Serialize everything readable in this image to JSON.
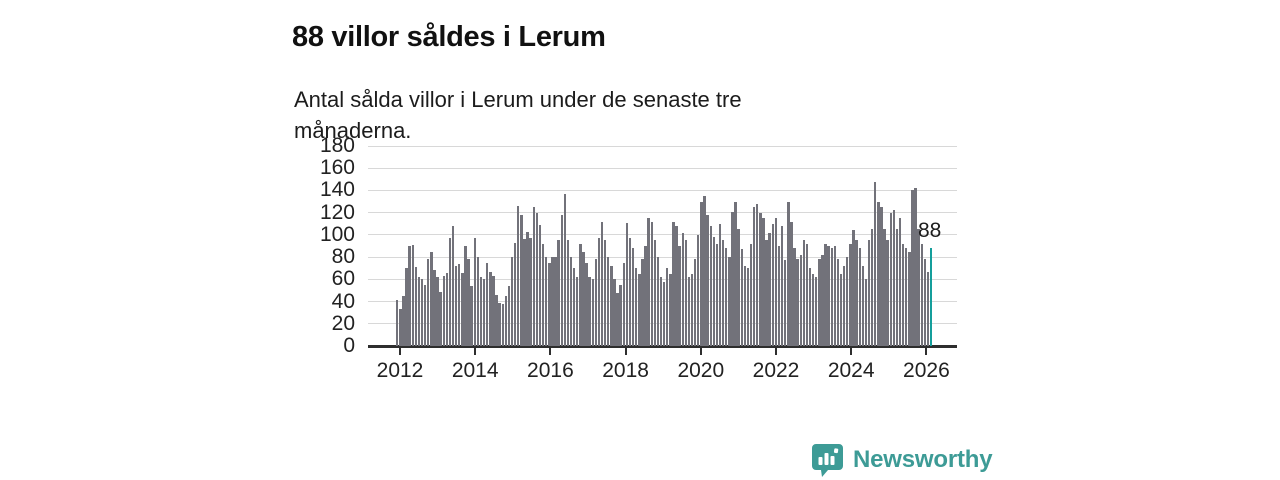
{
  "header": {
    "title": "88 villor såldes i Lerum",
    "subtitle": "Antal sålda villor i Lerum under de senaste tre månaderna."
  },
  "chart_data": {
    "type": "bar",
    "title": "88 villor såldes i Lerum",
    "subtitle": "Antal sålda villor i Lerum under de senaste tre månaderna.",
    "ylabel": "",
    "xlabel": "",
    "ylim": [
      0,
      180
    ],
    "y_ticks": [
      0,
      20,
      40,
      60,
      80,
      100,
      120,
      140,
      160,
      180
    ],
    "x_tick_labels": [
      "2012",
      "2014",
      "2016",
      "2018",
      "2020",
      "2022",
      "2024",
      "2026"
    ],
    "grid": true,
    "legend": "none",
    "bar_color": "#72727a",
    "highlight_color": "#149e9b",
    "values": [
      41,
      33,
      45,
      70,
      90,
      91,
      71,
      62,
      60,
      55,
      78,
      85,
      68,
      62,
      49,
      63,
      66,
      97,
      108,
      72,
      74,
      66,
      90,
      78,
      54,
      97,
      80,
      62,
      60,
      75,
      67,
      63,
      46,
      39,
      38,
      45,
      54,
      80,
      93,
      126,
      118,
      96,
      103,
      97,
      125,
      120,
      109,
      92,
      80,
      75,
      80,
      80,
      95,
      118,
      137,
      95,
      80,
      70,
      62,
      92,
      85,
      75,
      62,
      60,
      78,
      97,
      112,
      95,
      80,
      72,
      60,
      48,
      55,
      75,
      111,
      97,
      88,
      70,
      65,
      78,
      90,
      115,
      112,
      95,
      80,
      62,
      58,
      70,
      65,
      112,
      108,
      90,
      102,
      95,
      62,
      65,
      78,
      100,
      130,
      135,
      118,
      108,
      98,
      92,
      110,
      95,
      88,
      80,
      121,
      130,
      105,
      87,
      72,
      70,
      92,
      125,
      128,
      120,
      115,
      95,
      102,
      110,
      115,
      90,
      108,
      77,
      130,
      112,
      88,
      78,
      82,
      95,
      92,
      70,
      65,
      62,
      78,
      82,
      92,
      90,
      88,
      90,
      78,
      65,
      72,
      80,
      92,
      104,
      95,
      88,
      72,
      60,
      95,
      105,
      148,
      130,
      125,
      105,
      95,
      120,
      122,
      105,
      115,
      92,
      88,
      85,
      140,
      142,
      105,
      92,
      78,
      67,
      88
    ],
    "highlight": {
      "position": "last",
      "value": 88,
      "label": "88"
    }
  },
  "branding": {
    "logo_text": "Newsworthy",
    "logo_color": "#3d9b96"
  }
}
